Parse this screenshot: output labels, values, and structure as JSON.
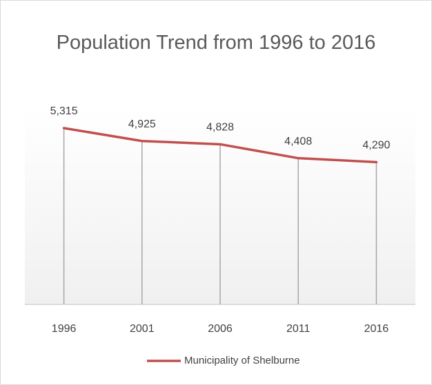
{
  "chart_data": {
    "type": "line",
    "title": "Population Trend from 1996 to 2016",
    "categories": [
      "1996",
      "2001",
      "2006",
      "2011",
      "2016"
    ],
    "series": [
      {
        "name": "Municipality of Shelburne",
        "color": "#c0504d",
        "values": [
          5315,
          4925,
          4828,
          4408,
          4290
        ],
        "value_labels": [
          "5,315",
          "4,925",
          "4,828",
          "4,408",
          "4,290"
        ]
      }
    ],
    "ylim": [
      0,
      6000
    ],
    "legend": "bottom",
    "drop_lines": true
  }
}
